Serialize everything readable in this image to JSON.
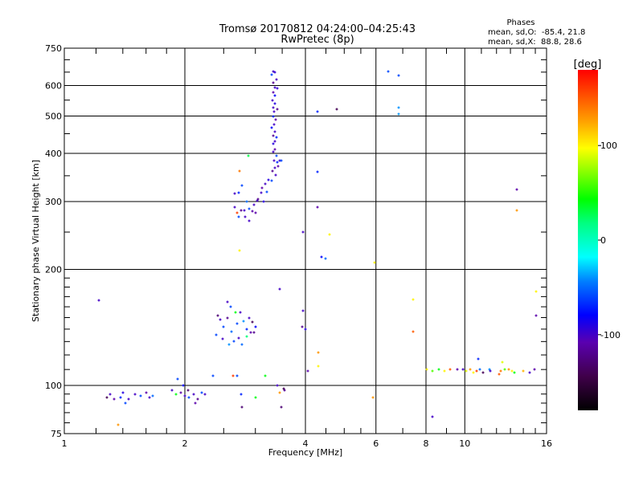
{
  "chart_data": {
    "type": "scatter",
    "title": "Tromsø 20170812 04:24:00–04:25:43",
    "subtitle": "RwPretec (8p)",
    "xlabel": "Frequency [MHz]",
    "ylabel": "Stationary phase Virtual Height [km]",
    "xscale": "log",
    "yscale": "log",
    "xlim": [
      1,
      16
    ],
    "ylim": [
      75,
      750
    ],
    "xticks": [
      1,
      2,
      4,
      6,
      8,
      10,
      16
    ],
    "yticks": [
      75,
      100,
      200,
      300,
      400,
      500,
      600,
      750
    ],
    "grid": true,
    "stats": {
      "title": "Phases",
      "o_line": "mean, sd,O:  -85.4, 21.8",
      "x_line": "mean, sd,X:  88.8, 28.6"
    },
    "colorbar": {
      "label": "[deg]",
      "range": [
        -180,
        180
      ],
      "ticks": [
        100,
        0,
        -100
      ]
    },
    "point_fields": [
      "frequency_MHz",
      "height_km",
      "phase_deg"
    ],
    "points": [
      [
        3.33,
        653,
        -100
      ],
      [
        3.36,
        648,
        -95
      ],
      [
        3.3,
        640,
        -60
      ],
      [
        3.38,
        623,
        -100
      ],
      [
        3.33,
        610,
        -120
      ],
      [
        3.35,
        593,
        -100
      ],
      [
        3.4,
        590,
        -95
      ],
      [
        3.32,
        575,
        -110
      ],
      [
        3.35,
        565,
        -80
      ],
      [
        3.31,
        550,
        -100
      ],
      [
        3.36,
        539,
        -90
      ],
      [
        3.33,
        525,
        -100
      ],
      [
        3.4,
        520,
        -120
      ],
      [
        3.34,
        513,
        -100
      ],
      [
        3.32,
        500,
        -70
      ],
      [
        3.37,
        489,
        -110
      ],
      [
        3.34,
        475,
        -100
      ],
      [
        3.3,
        467,
        -80
      ],
      [
        3.36,
        455,
        -100
      ],
      [
        3.33,
        444,
        -120
      ],
      [
        3.39,
        440,
        -70
      ],
      [
        3.35,
        430,
        -100
      ],
      [
        3.32,
        424,
        -90
      ],
      [
        3.36,
        410,
        -110
      ],
      [
        3.33,
        404,
        -100
      ],
      [
        3.38,
        395,
        -60
      ],
      [
        3.34,
        384,
        -100
      ],
      [
        3.4,
        380,
        -70
      ],
      [
        3.45,
        384,
        -95
      ],
      [
        3.48,
        384,
        -60
      ],
      [
        3.42,
        370,
        -110
      ],
      [
        3.35,
        367,
        -100
      ],
      [
        3.31,
        360,
        -120
      ],
      [
        3.37,
        352,
        -100
      ],
      [
        3.24,
        341,
        -90
      ],
      [
        3.3,
        340,
        -60
      ],
      [
        3.17,
        333,
        -100
      ],
      [
        3.12,
        325,
        -110
      ],
      [
        3.1,
        317,
        -100
      ],
      [
        3.2,
        318,
        -60
      ],
      [
        3.05,
        305,
        -120
      ],
      [
        3.03,
        301,
        -100
      ],
      [
        3.14,
        300,
        -90
      ],
      [
        2.97,
        294,
        -100
      ],
      [
        2.9,
        287,
        -60
      ],
      [
        2.95,
        283,
        -110
      ],
      [
        2.82,
        284,
        -100
      ],
      [
        2.76,
        284,
        -120
      ],
      [
        2.66,
        290,
        -100
      ],
      [
        2.72,
        274,
        -60
      ],
      [
        2.83,
        274,
        -100
      ],
      [
        3.0,
        281,
        -110
      ],
      [
        2.9,
        268,
        -100
      ],
      [
        2.72,
        317,
        -70
      ],
      [
        2.66,
        315,
        -100
      ],
      [
        2.78,
        330,
        -60
      ],
      [
        2.74,
        360,
        140
      ],
      [
        2.74,
        224,
        100
      ],
      [
        2.88,
        394,
        30
      ],
      [
        2.7,
        280,
        160
      ],
      [
        2.86,
        300,
        -50
      ],
      [
        4.29,
        513,
        -70
      ],
      [
        4.8,
        520,
        -140
      ],
      [
        6.43,
        653,
        -60
      ],
      [
        6.84,
        638,
        -60
      ],
      [
        6.84,
        525,
        -40
      ],
      [
        6.84,
        505,
        -40
      ],
      [
        4.29,
        358,
        -70
      ],
      [
        4.29,
        290,
        -110
      ],
      [
        3.95,
        250,
        -100
      ],
      [
        4.38,
        215,
        -80
      ],
      [
        4.5,
        213,
        -50
      ],
      [
        4.6,
        247,
        100
      ],
      [
        13.5,
        322,
        -110
      ],
      [
        13.5,
        284,
        130
      ],
      [
        2.45,
        148,
        -100
      ],
      [
        2.5,
        142,
        -60
      ],
      [
        2.55,
        150,
        -120
      ],
      [
        2.62,
        138,
        -50
      ],
      [
        2.7,
        145,
        -60
      ],
      [
        2.75,
        155,
        -100
      ],
      [
        2.8,
        147,
        -40
      ],
      [
        2.85,
        140,
        -70
      ],
      [
        2.9,
        150,
        -100
      ],
      [
        2.95,
        146,
        -140
      ],
      [
        2.4,
        135,
        -60
      ],
      [
        2.48,
        132,
        -100
      ],
      [
        2.58,
        128,
        -40
      ],
      [
        2.65,
        130,
        -60
      ],
      [
        2.72,
        133,
        -100
      ],
      [
        2.78,
        128,
        -50
      ],
      [
        2.85,
        134,
        20
      ],
      [
        2.92,
        137,
        -110
      ],
      [
        2.98,
        137,
        -120
      ],
      [
        2.55,
        165,
        -100
      ],
      [
        2.6,
        160,
        -60
      ],
      [
        2.68,
        155,
        40
      ],
      [
        2.42,
        152,
        -130
      ],
      [
        3.0,
        142,
        -80
      ],
      [
        1.22,
        166,
        -100
      ],
      [
        1.36,
        79,
        130
      ],
      [
        3.45,
        178,
        -100
      ],
      [
        3.94,
        156,
        -100
      ],
      [
        3.93,
        142,
        -120
      ],
      [
        4.0,
        140,
        -90
      ],
      [
        4.06,
        109,
        -110
      ],
      [
        4.31,
        122,
        130
      ],
      [
        4.3,
        112,
        100
      ],
      [
        2.64,
        106,
        160
      ],
      [
        2.7,
        106,
        -60
      ],
      [
        2.35,
        106,
        -60
      ],
      [
        3.17,
        106,
        40
      ],
      [
        3.4,
        100,
        -100
      ],
      [
        3.45,
        96,
        130
      ],
      [
        3.55,
        97,
        -120
      ],
      [
        3.53,
        98,
        -140
      ],
      [
        2.76,
        95,
        -70
      ],
      [
        2.78,
        88,
        -130
      ],
      [
        3.0,
        93,
        40
      ],
      [
        3.48,
        88,
        -130
      ],
      [
        1.3,
        95,
        -100
      ],
      [
        1.33,
        92,
        -110
      ],
      [
        1.38,
        93,
        -70
      ],
      [
        1.42,
        90,
        -60
      ],
      [
        1.45,
        92,
        -100
      ],
      [
        1.5,
        95,
        -100
      ],
      [
        1.55,
        94,
        -60
      ],
      [
        1.6,
        96,
        -110
      ],
      [
        1.63,
        93,
        -100
      ],
      [
        1.66,
        94,
        -50
      ],
      [
        1.28,
        93,
        -140
      ],
      [
        1.4,
        96,
        -90
      ],
      [
        1.86,
        97,
        -100
      ],
      [
        1.9,
        95,
        40
      ],
      [
        1.95,
        96,
        -110
      ],
      [
        2.0,
        94,
        -100
      ],
      [
        2.05,
        93,
        -60
      ],
      [
        2.1,
        95,
        -100
      ],
      [
        2.15,
        92,
        -120
      ],
      [
        1.98,
        100,
        -80
      ],
      [
        2.04,
        97,
        -130
      ],
      [
        2.12,
        90,
        -110
      ],
      [
        2.25,
        95,
        -100
      ],
      [
        2.2,
        96,
        -60
      ],
      [
        1.92,
        104,
        -60
      ],
      [
        5.9,
        93,
        130
      ],
      [
        8.3,
        83,
        -100
      ],
      [
        7.42,
        167,
        100
      ],
      [
        7.42,
        138,
        150
      ],
      [
        5.95,
        208,
        100
      ],
      [
        8.05,
        110,
        100
      ],
      [
        8.3,
        109,
        60
      ],
      [
        8.6,
        110,
        40
      ],
      [
        8.9,
        109,
        100
      ],
      [
        9.2,
        110,
        150
      ],
      [
        9.6,
        110,
        -110
      ],
      [
        9.9,
        110,
        -100
      ],
      [
        10.1,
        109,
        90
      ],
      [
        10.3,
        110,
        130
      ],
      [
        10.5,
        108,
        100
      ],
      [
        10.7,
        109,
        160
      ],
      [
        10.9,
        110,
        -50
      ],
      [
        11.1,
        108,
        -140
      ],
      [
        11.5,
        110,
        -40
      ],
      [
        11.6,
        109,
        -100
      ],
      [
        12.3,
        109,
        140
      ],
      [
        12.6,
        110,
        60
      ],
      [
        12.9,
        110,
        130
      ],
      [
        13.1,
        109,
        100
      ],
      [
        13.3,
        108,
        40
      ],
      [
        14.0,
        109,
        120
      ],
      [
        14.5,
        108,
        -100
      ],
      [
        14.9,
        110,
        -110
      ],
      [
        12.4,
        115,
        90
      ],
      [
        10.8,
        117,
        -70
      ],
      [
        12.2,
        107,
        150
      ],
      [
        15.1,
        175,
        100
      ],
      [
        15.1,
        152,
        -110
      ]
    ]
  }
}
